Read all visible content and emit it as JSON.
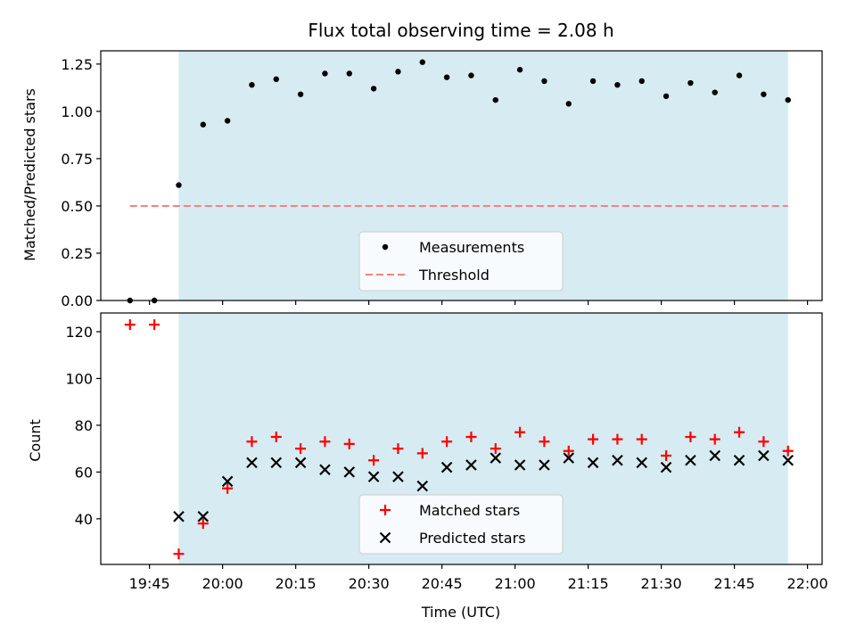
{
  "chart_data": [
    {
      "type": "scatter",
      "title": "Flux total observing time = 2.08 h",
      "xlabel": "",
      "ylabel": "Matched/Predicted stars",
      "ylim": [
        0,
        1.32
      ],
      "yticks": [
        "0.00",
        "0.25",
        "0.50",
        "0.75",
        "1.00",
        "1.25"
      ],
      "shaded_region": {
        "x_start": "19:51",
        "x_end": "21:56",
        "color": "#add8e6"
      },
      "legend": {
        "placement": "lower-center",
        "entries": [
          "Measurements",
          "Threshold"
        ]
      },
      "series": [
        {
          "name": "Measurements",
          "marker": "dot",
          "color": "#000000",
          "x": [
            "19:41",
            "19:46",
            "19:51",
            "19:56",
            "20:01",
            "20:06",
            "20:11",
            "20:16",
            "20:21",
            "20:26",
            "20:31",
            "20:36",
            "20:41",
            "20:46",
            "20:51",
            "20:56",
            "21:01",
            "21:06",
            "21:11",
            "21:16",
            "21:21",
            "21:26",
            "21:31",
            "21:36",
            "21:41",
            "21:46",
            "21:51",
            "21:56"
          ],
          "y": [
            0.0,
            0.0,
            0.61,
            0.93,
            0.95,
            1.14,
            1.17,
            1.09,
            1.2,
            1.2,
            1.12,
            1.21,
            1.26,
            1.18,
            1.19,
            1.06,
            1.22,
            1.16,
            1.04,
            1.16,
            1.14,
            1.16,
            1.08,
            1.15,
            1.1,
            1.19,
            1.09,
            1.06
          ]
        },
        {
          "name": "Threshold",
          "marker": "dashed-line",
          "color": "#ff7f7f",
          "x": [
            "19:41",
            "21:56"
          ],
          "y": [
            0.5,
            0.5
          ]
        }
      ]
    },
    {
      "type": "scatter",
      "title": "",
      "xlabel": "Time (UTC)",
      "ylabel": "Count",
      "ylim": [
        20.5,
        128
      ],
      "yticks": [
        "40",
        "60",
        "80",
        "100",
        "120"
      ],
      "xticks": [
        "19:45",
        "20:00",
        "20:15",
        "20:30",
        "20:45",
        "21:00",
        "21:15",
        "21:30",
        "21:45",
        "22:00"
      ],
      "shaded_region": {
        "x_start": "19:51",
        "x_end": "21:56",
        "color": "#add8e6"
      },
      "legend": {
        "placement": "lower-center",
        "entries": [
          "Matched stars",
          "Predicted stars"
        ]
      },
      "series": [
        {
          "name": "Matched stars",
          "marker": "plus",
          "color": "#ff0000",
          "x": [
            "19:41",
            "19:46",
            "19:51",
            "19:56",
            "20:01",
            "20:06",
            "20:11",
            "20:16",
            "20:21",
            "20:26",
            "20:31",
            "20:36",
            "20:41",
            "20:46",
            "20:51",
            "20:56",
            "21:01",
            "21:06",
            "21:11",
            "21:16",
            "21:21",
            "21:26",
            "21:31",
            "21:36",
            "21:41",
            "21:46",
            "21:51",
            "21:56"
          ],
          "y": [
            123,
            123,
            25,
            38,
            53,
            73,
            75,
            70,
            73,
            72,
            65,
            70,
            68,
            73,
            75,
            70,
            77,
            73,
            69,
            74,
            74,
            74,
            67,
            75,
            74,
            77,
            73,
            69
          ]
        },
        {
          "name": "Predicted stars",
          "marker": "x",
          "color": "#000000",
          "x": [
            "19:51",
            "19:56",
            "20:01",
            "20:06",
            "20:11",
            "20:16",
            "20:21",
            "20:26",
            "20:31",
            "20:36",
            "20:41",
            "20:46",
            "20:51",
            "20:56",
            "21:01",
            "21:06",
            "21:11",
            "21:16",
            "21:21",
            "21:26",
            "21:31",
            "21:36",
            "21:41",
            "21:46",
            "21:51",
            "21:56"
          ],
          "y": [
            41,
            41,
            56,
            64,
            64,
            64,
            61,
            60,
            58,
            58,
            54,
            62,
            63,
            66,
            63,
            63,
            66,
            64,
            65,
            64,
            62,
            65,
            67,
            65,
            67,
            65
          ]
        }
      ]
    }
  ]
}
